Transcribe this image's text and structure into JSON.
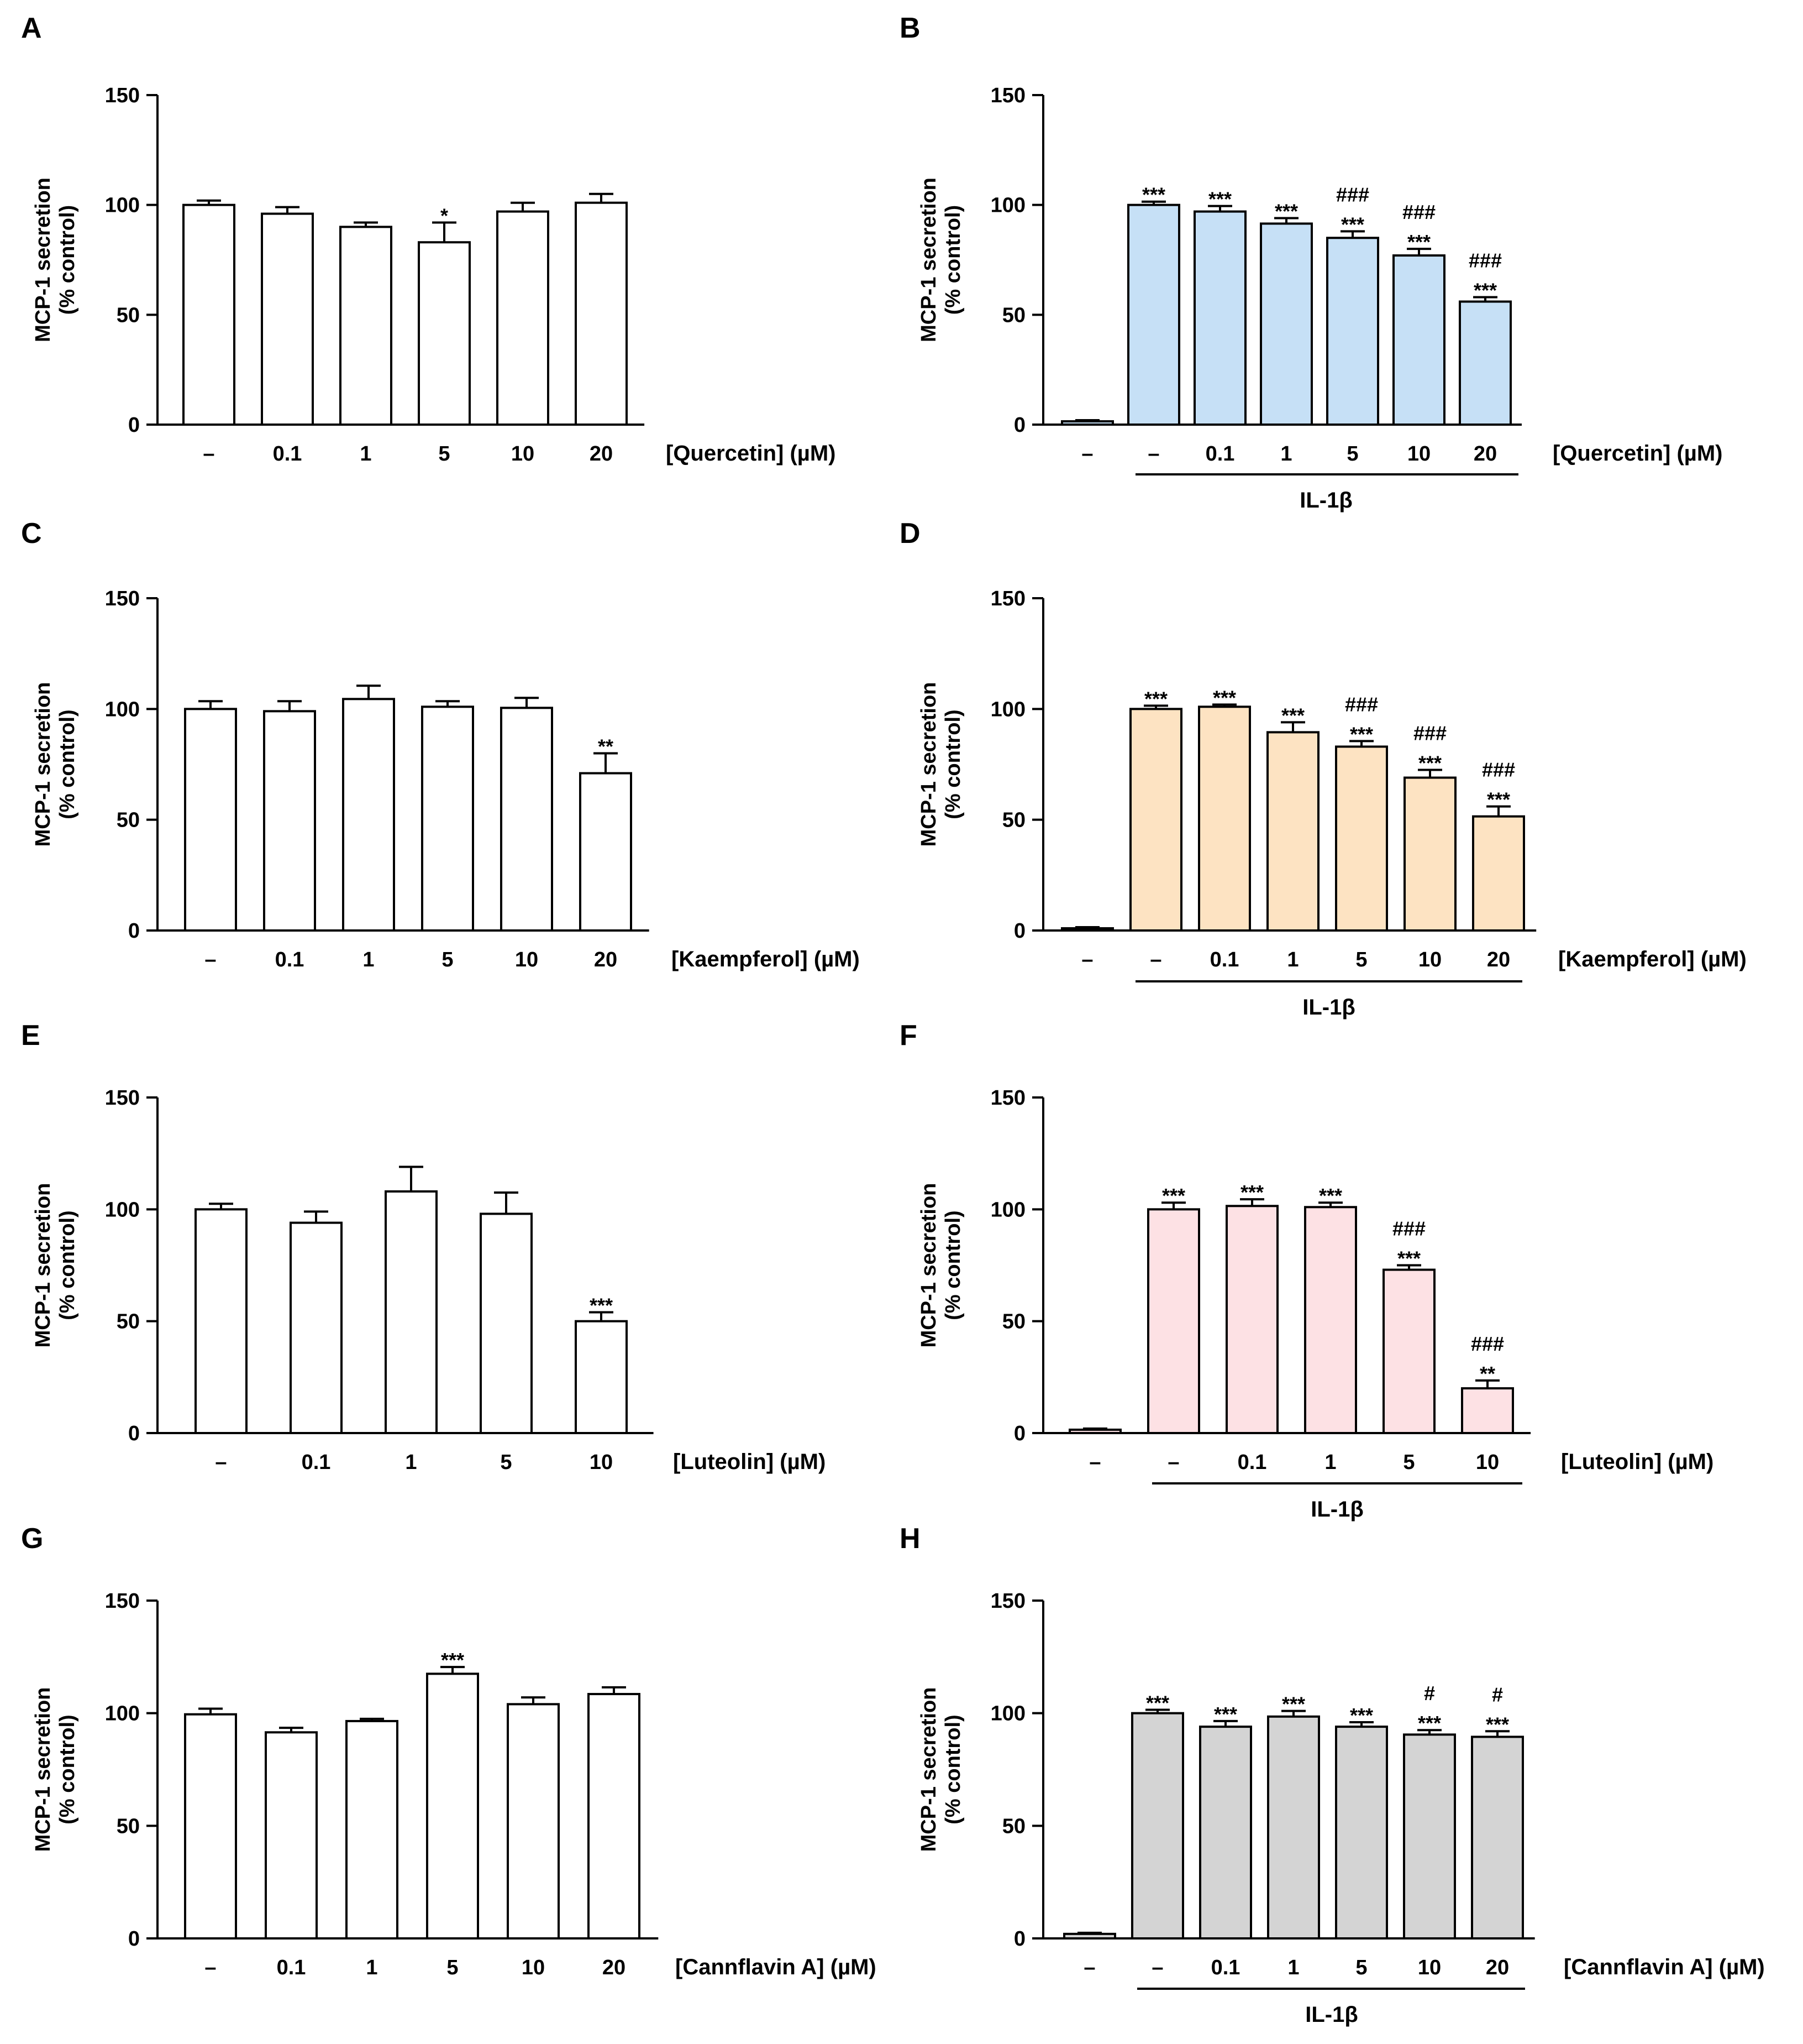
{
  "figure": {
    "y_axis_title_line1": "MCP-1 secretion",
    "y_axis_title_line2": "(% control)",
    "y_ticks": [
      "0",
      "50",
      "100",
      "150"
    ]
  },
  "chart_data": [
    {
      "panel": "A",
      "type": "bar",
      "fill": "#ffffff",
      "categories": [
        "–",
        "0.1",
        "1",
        "5",
        "10",
        "20"
      ],
      "values": [
        100,
        96,
        90,
        83,
        97,
        101
      ],
      "errors": [
        2,
        3,
        2,
        9,
        4,
        4
      ],
      "significance": [
        [],
        [],
        [],
        [
          "*"
        ],
        [],
        []
      ],
      "xlabel": "[Quercetin] (µM)",
      "ylabel": "MCP-1 secretion (% control)",
      "ylim": [
        0,
        150
      ],
      "group_label": null
    },
    {
      "panel": "B",
      "type": "bar",
      "fill": "#c6e0f6",
      "categories": [
        "–",
        "–",
        "0.1",
        "1",
        "5",
        "10",
        "20"
      ],
      "values": [
        1.5,
        100,
        97,
        91.5,
        85,
        77,
        56
      ],
      "errors": [
        0.5,
        1.5,
        2.5,
        2.5,
        3,
        3,
        2
      ],
      "significance": [
        [],
        [
          "***"
        ],
        [
          "***"
        ],
        [
          "***"
        ],
        [
          "###",
          "***"
        ],
        [
          "###",
          "***"
        ],
        [
          "###",
          "***"
        ]
      ],
      "xlabel": "[Quercetin] (µM)",
      "ylabel": "MCP-1 secretion (% control)",
      "ylim": [
        0,
        150
      ],
      "group_label": "IL-1β"
    },
    {
      "panel": "C",
      "type": "bar",
      "fill": "#ffffff",
      "categories": [
        "–",
        "0.1",
        "1",
        "5",
        "10",
        "20"
      ],
      "values": [
        100,
        99,
        104.5,
        101,
        100.5,
        71
      ],
      "errors": [
        3.5,
        4.5,
        6,
        2.5,
        4.5,
        9
      ],
      "significance": [
        [],
        [],
        [],
        [],
        [],
        [
          "**"
        ]
      ],
      "xlabel": "[Kaempferol] (µM)",
      "ylabel": "MCP-1 secretion (% control)",
      "ylim": [
        0,
        150
      ],
      "group_label": null
    },
    {
      "panel": "D",
      "type": "bar",
      "fill": "#fde3c2",
      "categories": [
        "–",
        "–",
        "0.1",
        "1",
        "5",
        "10",
        "20"
      ],
      "values": [
        1,
        100,
        101,
        89.5,
        83,
        69,
        51.5
      ],
      "errors": [
        0.5,
        1.5,
        1,
        4.5,
        2.5,
        3.5,
        4.5
      ],
      "significance": [
        [],
        [
          "***"
        ],
        [
          "***"
        ],
        [
          "***"
        ],
        [
          "###",
          "***"
        ],
        [
          "###",
          "***"
        ],
        [
          "###",
          "***"
        ]
      ],
      "xlabel": "[Kaempferol] (µM)",
      "ylabel": "MCP-1 secretion (% control)",
      "ylim": [
        0,
        150
      ],
      "group_label": "IL-1β"
    },
    {
      "panel": "E",
      "type": "bar",
      "fill": "#ffffff",
      "categories": [
        "–",
        "0.1",
        "1",
        "5",
        "10"
      ],
      "values": [
        100,
        94,
        108,
        98,
        50
      ],
      "errors": [
        2.5,
        5,
        11,
        9.5,
        4
      ],
      "significance": [
        [],
        [],
        [],
        [],
        [
          "***"
        ]
      ],
      "xlabel": "[Luteolin] (µM)",
      "ylabel": "MCP-1 secretion (% control)",
      "ylim": [
        0,
        150
      ],
      "group_label": null
    },
    {
      "panel": "F",
      "type": "bar",
      "fill": "#fde1e4",
      "categories": [
        "–",
        "–",
        "0.1",
        "1",
        "5",
        "10"
      ],
      "values": [
        1.5,
        100,
        101.5,
        101,
        73,
        20
      ],
      "errors": [
        0.5,
        3,
        3,
        2,
        2,
        3.5
      ],
      "significance": [
        [],
        [
          "***"
        ],
        [
          "***"
        ],
        [
          "***"
        ],
        [
          "###",
          "***"
        ],
        [
          "###",
          "**"
        ]
      ],
      "xlabel": "[Luteolin] (µM)",
      "ylabel": "MCP-1 secretion (% control)",
      "ylim": [
        0,
        150
      ],
      "group_label": "IL-1β"
    },
    {
      "panel": "G",
      "type": "bar",
      "fill": "#ffffff",
      "categories": [
        "–",
        "0.1",
        "1",
        "5",
        "10",
        "20"
      ],
      "values": [
        99.5,
        91.5,
        96.5,
        117.5,
        104,
        108.5
      ],
      "errors": [
        2.5,
        2,
        1,
        3,
        3,
        3
      ],
      "significance": [
        [],
        [],
        [],
        [
          "***"
        ],
        [],
        []
      ],
      "xlabel": "[Cannflavin A] (µM)",
      "ylabel": "MCP-1 secretion (% control)",
      "ylim": [
        0,
        150
      ],
      "group_label": null
    },
    {
      "panel": "H",
      "type": "bar",
      "fill": "#d4d4d4",
      "categories": [
        "–",
        "–",
        "0.1",
        "1",
        "5",
        "10",
        "20"
      ],
      "values": [
        2,
        100,
        94,
        98.5,
        94,
        90.5,
        89.5
      ],
      "errors": [
        0.5,
        1.5,
        2.5,
        2.5,
        2,
        2,
        2.5
      ],
      "significance": [
        [],
        [
          "***"
        ],
        [
          "***"
        ],
        [
          "***"
        ],
        [
          "***"
        ],
        [
          "#",
          "***"
        ],
        [
          "#",
          "***"
        ]
      ],
      "xlabel": "[Cannflavin A] (µM)",
      "ylabel": "MCP-1 secretion (% control)",
      "ylim": [
        0,
        150
      ],
      "group_label": "IL-1β"
    }
  ]
}
